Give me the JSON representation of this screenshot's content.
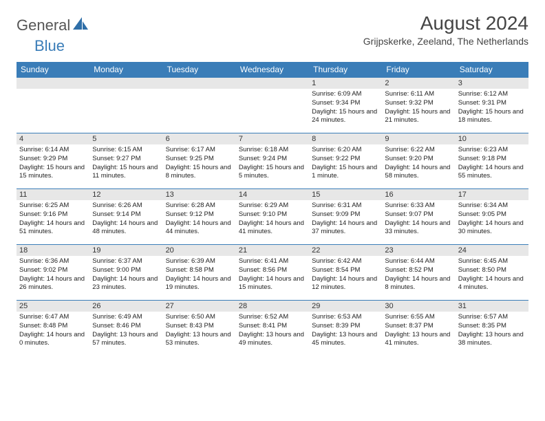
{
  "brand": {
    "general": "General",
    "blue": "Blue"
  },
  "title": "August 2024",
  "location": "Grijpskerke, Zeeland, The Netherlands",
  "colors": {
    "accent": "#3a7db8",
    "band": "#e7e7e7",
    "text": "#222222"
  },
  "days_of_week": [
    "Sunday",
    "Monday",
    "Tuesday",
    "Wednesday",
    "Thursday",
    "Friday",
    "Saturday"
  ],
  "weeks": [
    [
      null,
      null,
      null,
      null,
      {
        "n": "1",
        "sr": "Sunrise: 6:09 AM",
        "ss": "Sunset: 9:34 PM",
        "dl": "Daylight: 15 hours and 24 minutes."
      },
      {
        "n": "2",
        "sr": "Sunrise: 6:11 AM",
        "ss": "Sunset: 9:32 PM",
        "dl": "Daylight: 15 hours and 21 minutes."
      },
      {
        "n": "3",
        "sr": "Sunrise: 6:12 AM",
        "ss": "Sunset: 9:31 PM",
        "dl": "Daylight: 15 hours and 18 minutes."
      }
    ],
    [
      {
        "n": "4",
        "sr": "Sunrise: 6:14 AM",
        "ss": "Sunset: 9:29 PM",
        "dl": "Daylight: 15 hours and 15 minutes."
      },
      {
        "n": "5",
        "sr": "Sunrise: 6:15 AM",
        "ss": "Sunset: 9:27 PM",
        "dl": "Daylight: 15 hours and 11 minutes."
      },
      {
        "n": "6",
        "sr": "Sunrise: 6:17 AM",
        "ss": "Sunset: 9:25 PM",
        "dl": "Daylight: 15 hours and 8 minutes."
      },
      {
        "n": "7",
        "sr": "Sunrise: 6:18 AM",
        "ss": "Sunset: 9:24 PM",
        "dl": "Daylight: 15 hours and 5 minutes."
      },
      {
        "n": "8",
        "sr": "Sunrise: 6:20 AM",
        "ss": "Sunset: 9:22 PM",
        "dl": "Daylight: 15 hours and 1 minute."
      },
      {
        "n": "9",
        "sr": "Sunrise: 6:22 AM",
        "ss": "Sunset: 9:20 PM",
        "dl": "Daylight: 14 hours and 58 minutes."
      },
      {
        "n": "10",
        "sr": "Sunrise: 6:23 AM",
        "ss": "Sunset: 9:18 PM",
        "dl": "Daylight: 14 hours and 55 minutes."
      }
    ],
    [
      {
        "n": "11",
        "sr": "Sunrise: 6:25 AM",
        "ss": "Sunset: 9:16 PM",
        "dl": "Daylight: 14 hours and 51 minutes."
      },
      {
        "n": "12",
        "sr": "Sunrise: 6:26 AM",
        "ss": "Sunset: 9:14 PM",
        "dl": "Daylight: 14 hours and 48 minutes."
      },
      {
        "n": "13",
        "sr": "Sunrise: 6:28 AM",
        "ss": "Sunset: 9:12 PM",
        "dl": "Daylight: 14 hours and 44 minutes."
      },
      {
        "n": "14",
        "sr": "Sunrise: 6:29 AM",
        "ss": "Sunset: 9:10 PM",
        "dl": "Daylight: 14 hours and 41 minutes."
      },
      {
        "n": "15",
        "sr": "Sunrise: 6:31 AM",
        "ss": "Sunset: 9:09 PM",
        "dl": "Daylight: 14 hours and 37 minutes."
      },
      {
        "n": "16",
        "sr": "Sunrise: 6:33 AM",
        "ss": "Sunset: 9:07 PM",
        "dl": "Daylight: 14 hours and 33 minutes."
      },
      {
        "n": "17",
        "sr": "Sunrise: 6:34 AM",
        "ss": "Sunset: 9:05 PM",
        "dl": "Daylight: 14 hours and 30 minutes."
      }
    ],
    [
      {
        "n": "18",
        "sr": "Sunrise: 6:36 AM",
        "ss": "Sunset: 9:02 PM",
        "dl": "Daylight: 14 hours and 26 minutes."
      },
      {
        "n": "19",
        "sr": "Sunrise: 6:37 AM",
        "ss": "Sunset: 9:00 PM",
        "dl": "Daylight: 14 hours and 23 minutes."
      },
      {
        "n": "20",
        "sr": "Sunrise: 6:39 AM",
        "ss": "Sunset: 8:58 PM",
        "dl": "Daylight: 14 hours and 19 minutes."
      },
      {
        "n": "21",
        "sr": "Sunrise: 6:41 AM",
        "ss": "Sunset: 8:56 PM",
        "dl": "Daylight: 14 hours and 15 minutes."
      },
      {
        "n": "22",
        "sr": "Sunrise: 6:42 AM",
        "ss": "Sunset: 8:54 PM",
        "dl": "Daylight: 14 hours and 12 minutes."
      },
      {
        "n": "23",
        "sr": "Sunrise: 6:44 AM",
        "ss": "Sunset: 8:52 PM",
        "dl": "Daylight: 14 hours and 8 minutes."
      },
      {
        "n": "24",
        "sr": "Sunrise: 6:45 AM",
        "ss": "Sunset: 8:50 PM",
        "dl": "Daylight: 14 hours and 4 minutes."
      }
    ],
    [
      {
        "n": "25",
        "sr": "Sunrise: 6:47 AM",
        "ss": "Sunset: 8:48 PM",
        "dl": "Daylight: 14 hours and 0 minutes."
      },
      {
        "n": "26",
        "sr": "Sunrise: 6:49 AM",
        "ss": "Sunset: 8:46 PM",
        "dl": "Daylight: 13 hours and 57 minutes."
      },
      {
        "n": "27",
        "sr": "Sunrise: 6:50 AM",
        "ss": "Sunset: 8:43 PM",
        "dl": "Daylight: 13 hours and 53 minutes."
      },
      {
        "n": "28",
        "sr": "Sunrise: 6:52 AM",
        "ss": "Sunset: 8:41 PM",
        "dl": "Daylight: 13 hours and 49 minutes."
      },
      {
        "n": "29",
        "sr": "Sunrise: 6:53 AM",
        "ss": "Sunset: 8:39 PM",
        "dl": "Daylight: 13 hours and 45 minutes."
      },
      {
        "n": "30",
        "sr": "Sunrise: 6:55 AM",
        "ss": "Sunset: 8:37 PM",
        "dl": "Daylight: 13 hours and 41 minutes."
      },
      {
        "n": "31",
        "sr": "Sunrise: 6:57 AM",
        "ss": "Sunset: 8:35 PM",
        "dl": "Daylight: 13 hours and 38 minutes."
      }
    ]
  ]
}
